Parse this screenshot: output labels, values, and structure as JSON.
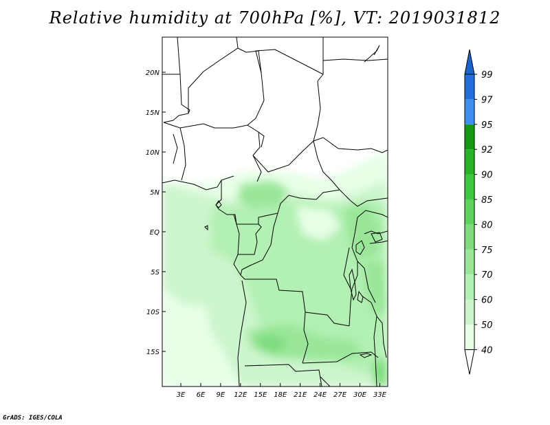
{
  "title": "Relative humidity at 700hPa [%], VT: 2019031812",
  "credit": "GrADS: IGES/COLA",
  "map": {
    "lon_range": [
      0.2,
      34.2
    ],
    "lat_range": [
      -19.4,
      24.4
    ],
    "lon_ticks": [
      {
        "value": 3,
        "label": "3E"
      },
      {
        "value": 6,
        "label": "6E"
      },
      {
        "value": 9,
        "label": "9E"
      },
      {
        "value": 12,
        "label": "12E"
      },
      {
        "value": 15,
        "label": "15E"
      },
      {
        "value": 18,
        "label": "18E"
      },
      {
        "value": 21,
        "label": "21E"
      },
      {
        "value": 24,
        "label": "24E"
      },
      {
        "value": 27,
        "label": "27E"
      },
      {
        "value": 30,
        "label": "30E"
      },
      {
        "value": 33,
        "label": "33E"
      }
    ],
    "lat_ticks": [
      {
        "value": 20,
        "label": "20N"
      },
      {
        "value": 15,
        "label": "15N"
      },
      {
        "value": 10,
        "label": "10N"
      },
      {
        "value": 5,
        "label": "5N"
      },
      {
        "value": 0,
        "label": "EQ"
      },
      {
        "value": -5,
        "label": "5S"
      },
      {
        "value": -10,
        "label": "10S"
      },
      {
        "value": -15,
        "label": "15S"
      }
    ]
  },
  "colorbar": {
    "levels": [
      "40",
      "50",
      "60",
      "70",
      "75",
      "80",
      "85",
      "90",
      "92",
      "95",
      "97",
      "99"
    ],
    "colors": [
      "#e6ffe6",
      "#ccf5cc",
      "#b3f0b3",
      "#99e699",
      "#7fdd7f",
      "#5cd45c",
      "#3dc83d",
      "#26b426",
      "#139a13",
      "#3d8ff0",
      "#2170dc",
      "#1257c8"
    ],
    "below_color": "#ffffff",
    "above_color": "#1a64d2"
  }
}
